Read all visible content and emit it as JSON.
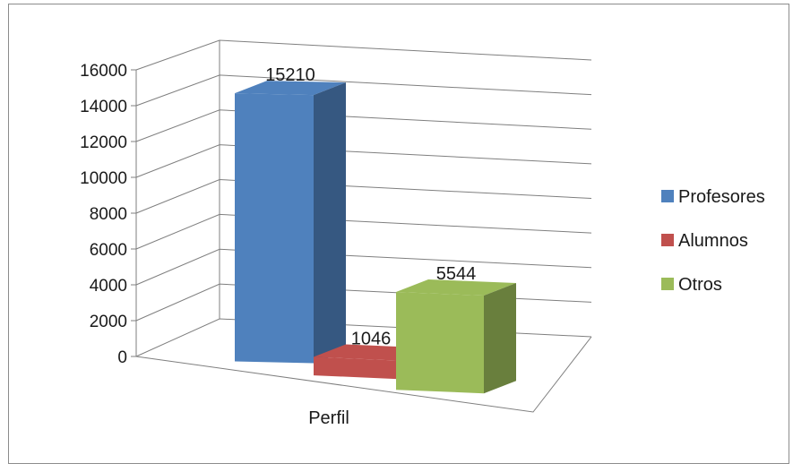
{
  "chart_data": {
    "type": "bar",
    "categories": [
      "Perfil"
    ],
    "series": [
      {
        "name": "Profesores",
        "values": [
          15210
        ],
        "color": "#4f81bd"
      },
      {
        "name": "Alumnos",
        "values": [
          1046
        ],
        "color": "#c0504d"
      },
      {
        "name": "Otros",
        "values": [
          5544
        ],
        "color": "#9bbb59"
      }
    ],
    "ylim": [
      0,
      16000
    ],
    "yticks": [
      "0",
      "2000",
      "4000",
      "6000",
      "8000",
      "10000",
      "12000",
      "14000",
      "16000"
    ],
    "xlabel": "Perfil",
    "grid": true,
    "legend_position": "right",
    "style": "3d-column"
  }
}
